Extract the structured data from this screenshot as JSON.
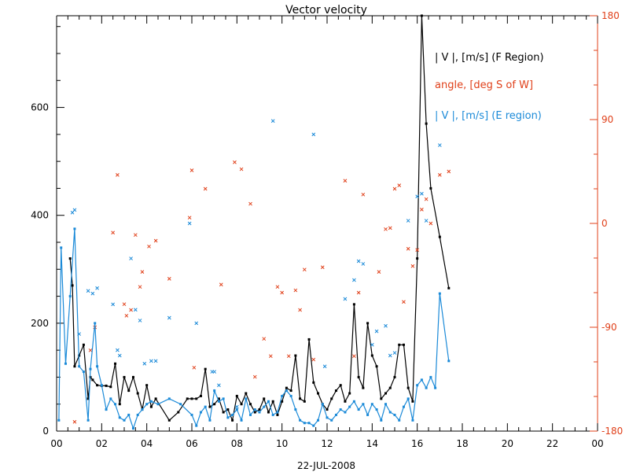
{
  "chart_data": {
    "type": "line",
    "title": "Vector velocity",
    "xlabel": "22-JUL-2008",
    "x_ticks": [
      "00",
      "02",
      "04",
      "06",
      "08",
      "10",
      "12",
      "14",
      "16",
      "18",
      "20",
      "22",
      "00"
    ],
    "xlim": [
      0,
      24
    ],
    "ylim_left": [
      0,
      770
    ],
    "y_ticks_left": [
      "0",
      "200",
      "400",
      "600"
    ],
    "ylim_right": [
      -180,
      180
    ],
    "y_ticks_right": [
      "-180",
      "-90",
      "0",
      "90",
      "180"
    ],
    "legend_placement": "top-right",
    "colors": {
      "black": "#000000",
      "red": "#e0401a",
      "blue": "#1b8ad8"
    },
    "series": [
      {
        "name": "| V |, [m/s] (F Region)",
        "style": "line",
        "color": "black",
        "axis": "left",
        "x": [
          0.6,
          0.7,
          0.8,
          1.0,
          1.2,
          1.4,
          1.5,
          1.6,
          1.8,
          2.0,
          2.2,
          2.4,
          2.6,
          2.8,
          3.0,
          3.2,
          3.4,
          3.6,
          3.8,
          4.0,
          4.2,
          4.4,
          5.0,
          5.4,
          5.8,
          6.0,
          6.2,
          6.4,
          6.6,
          6.8,
          7.0,
          7.2,
          7.4,
          7.6,
          7.8,
          8.0,
          8.2,
          8.4,
          8.6,
          8.8,
          9.0,
          9.2,
          9.4,
          9.6,
          9.8,
          10.0,
          10.2,
          10.4,
          10.6,
          10.8,
          11.0,
          11.2,
          11.4,
          11.6,
          11.8,
          12.0,
          12.2,
          12.4,
          12.6,
          12.8,
          13.0,
          13.2,
          13.4,
          13.6,
          13.8,
          14.0,
          14.2,
          14.4,
          14.6,
          14.8,
          15.0,
          15.2,
          15.4,
          15.6,
          15.8,
          16.0,
          16.2,
          16.4,
          16.6,
          17.0,
          17.4
        ],
        "y": [
          320,
          270,
          120,
          140,
          160,
          60,
          100,
          95,
          85,
          84,
          84,
          82,
          125,
          50,
          100,
          75,
          100,
          70,
          40,
          85,
          45,
          60,
          20,
          35,
          60,
          60,
          60,
          65,
          115,
          45,
          50,
          60,
          35,
          40,
          20,
          65,
          50,
          70,
          50,
          35,
          40,
          60,
          35,
          55,
          30,
          55,
          80,
          75,
          140,
          60,
          55,
          170,
          90,
          70,
          50,
          40,
          60,
          75,
          85,
          55,
          70,
          235,
          100,
          80,
          200,
          140,
          120,
          60,
          70,
          80,
          100,
          160,
          160,
          80,
          55,
          320,
          770,
          570,
          450,
          360,
          265
        ]
      },
      {
        "name": "angle, [deg S of W]",
        "style": "markers",
        "color": "red",
        "axis": "right",
        "x": [
          0.8,
          1.5,
          1.7,
          2.5,
          2.7,
          3.0,
          3.1,
          3.3,
          3.5,
          3.7,
          3.8,
          4.1,
          4.4,
          5.0,
          5.9,
          6.0,
          6.1,
          6.6,
          7.3,
          7.9,
          8.2,
          8.6,
          8.8,
          9.2,
          9.5,
          9.8,
          10.0,
          10.3,
          10.6,
          10.8,
          11.0,
          11.4,
          11.8,
          12.8,
          13.2,
          13.4,
          13.6,
          14.3,
          14.6,
          14.8,
          15.0,
          15.2,
          15.4,
          15.6,
          15.8,
          16.0,
          16.2,
          16.4,
          16.6,
          17.0,
          17.4
        ],
        "y": [
          -172,
          -110,
          -90,
          -8,
          42,
          -70,
          -80,
          -75,
          -10,
          -55,
          -42,
          -20,
          -15,
          -48,
          5,
          46,
          -125,
          30,
          -53,
          53,
          47,
          17,
          -133,
          -100,
          -115,
          -55,
          -60,
          -115,
          -58,
          -75,
          -40,
          -118,
          -38,
          37,
          -115,
          -60,
          25,
          -42,
          -5,
          -4,
          30,
          33,
          -68,
          -22,
          -37,
          -23,
          12,
          21,
          0,
          42,
          45
        ]
      },
      {
        "name": "| V |, [m/s] (E region)",
        "style": "line",
        "color": "blue",
        "axis": "left",
        "x": [
          0.1,
          0.2,
          0.4,
          0.6,
          0.8,
          1.0,
          1.2,
          1.4,
          1.5,
          1.7,
          1.8,
          2.0,
          2.2,
          2.4,
          2.6,
          2.8,
          3.0,
          3.2,
          3.4,
          3.6,
          3.8,
          4.0,
          4.2,
          4.5,
          5.0,
          5.5,
          6.0,
          6.2,
          6.4,
          6.6,
          6.8,
          7.0,
          7.2,
          7.4,
          7.6,
          7.8,
          8.0,
          8.2,
          8.4,
          8.6,
          8.8,
          9.0,
          9.2,
          9.4,
          9.6,
          9.8,
          10.0,
          10.2,
          10.4,
          10.6,
          10.8,
          11.0,
          11.2,
          11.4,
          11.6,
          11.8,
          12.0,
          12.2,
          12.4,
          12.6,
          12.8,
          13.0,
          13.2,
          13.4,
          13.6,
          13.8,
          14.0,
          14.2,
          14.4,
          14.6,
          14.8,
          15.0,
          15.2,
          15.4,
          15.6,
          15.8,
          16.0,
          16.2,
          16.4,
          16.6,
          16.8,
          17.0,
          17.4
        ],
        "y": [
          20,
          340,
          125,
          250,
          375,
          120,
          110,
          20,
          115,
          200,
          120,
          85,
          40,
          60,
          50,
          25,
          20,
          30,
          5,
          30,
          40,
          50,
          55,
          50,
          60,
          50,
          30,
          10,
          35,
          45,
          20,
          75,
          55,
          60,
          25,
          30,
          40,
          20,
          60,
          30,
          40,
          35,
          45,
          55,
          30,
          35,
          65,
          75,
          65,
          40,
          20,
          15,
          15,
          10,
          20,
          50,
          25,
          20,
          30,
          40,
          35,
          45,
          55,
          40,
          50,
          30,
          50,
          40,
          20,
          50,
          35,
          30,
          20,
          45,
          60,
          20,
          85,
          95,
          80,
          100,
          80,
          255,
          130
        ]
      },
      {
        "name": "",
        "style": "markers",
        "color": "blue",
        "axis": "left",
        "x": [
          0.7,
          0.8,
          1.0,
          1.4,
          1.6,
          1.8,
          2.5,
          2.7,
          2.8,
          3.3,
          3.5,
          3.7,
          3.9,
          4.2,
          4.4,
          5.0,
          5.9,
          6.2,
          6.9,
          7.0,
          7.2,
          8.0,
          9.6,
          11.4,
          11.9,
          12.8,
          13.2,
          13.4,
          13.6,
          14.0,
          14.2,
          14.6,
          14.8,
          15.0,
          15.6,
          16.0,
          16.2,
          16.4,
          17.0
        ],
        "y": [
          405,
          410,
          180,
          260,
          255,
          265,
          235,
          150,
          140,
          320,
          225,
          205,
          125,
          130,
          130,
          210,
          385,
          200,
          110,
          110,
          85,
          45,
          575,
          550,
          120,
          245,
          280,
          315,
          310,
          160,
          185,
          195,
          140,
          145,
          390,
          435,
          440,
          390,
          530
        ]
      }
    ]
  }
}
